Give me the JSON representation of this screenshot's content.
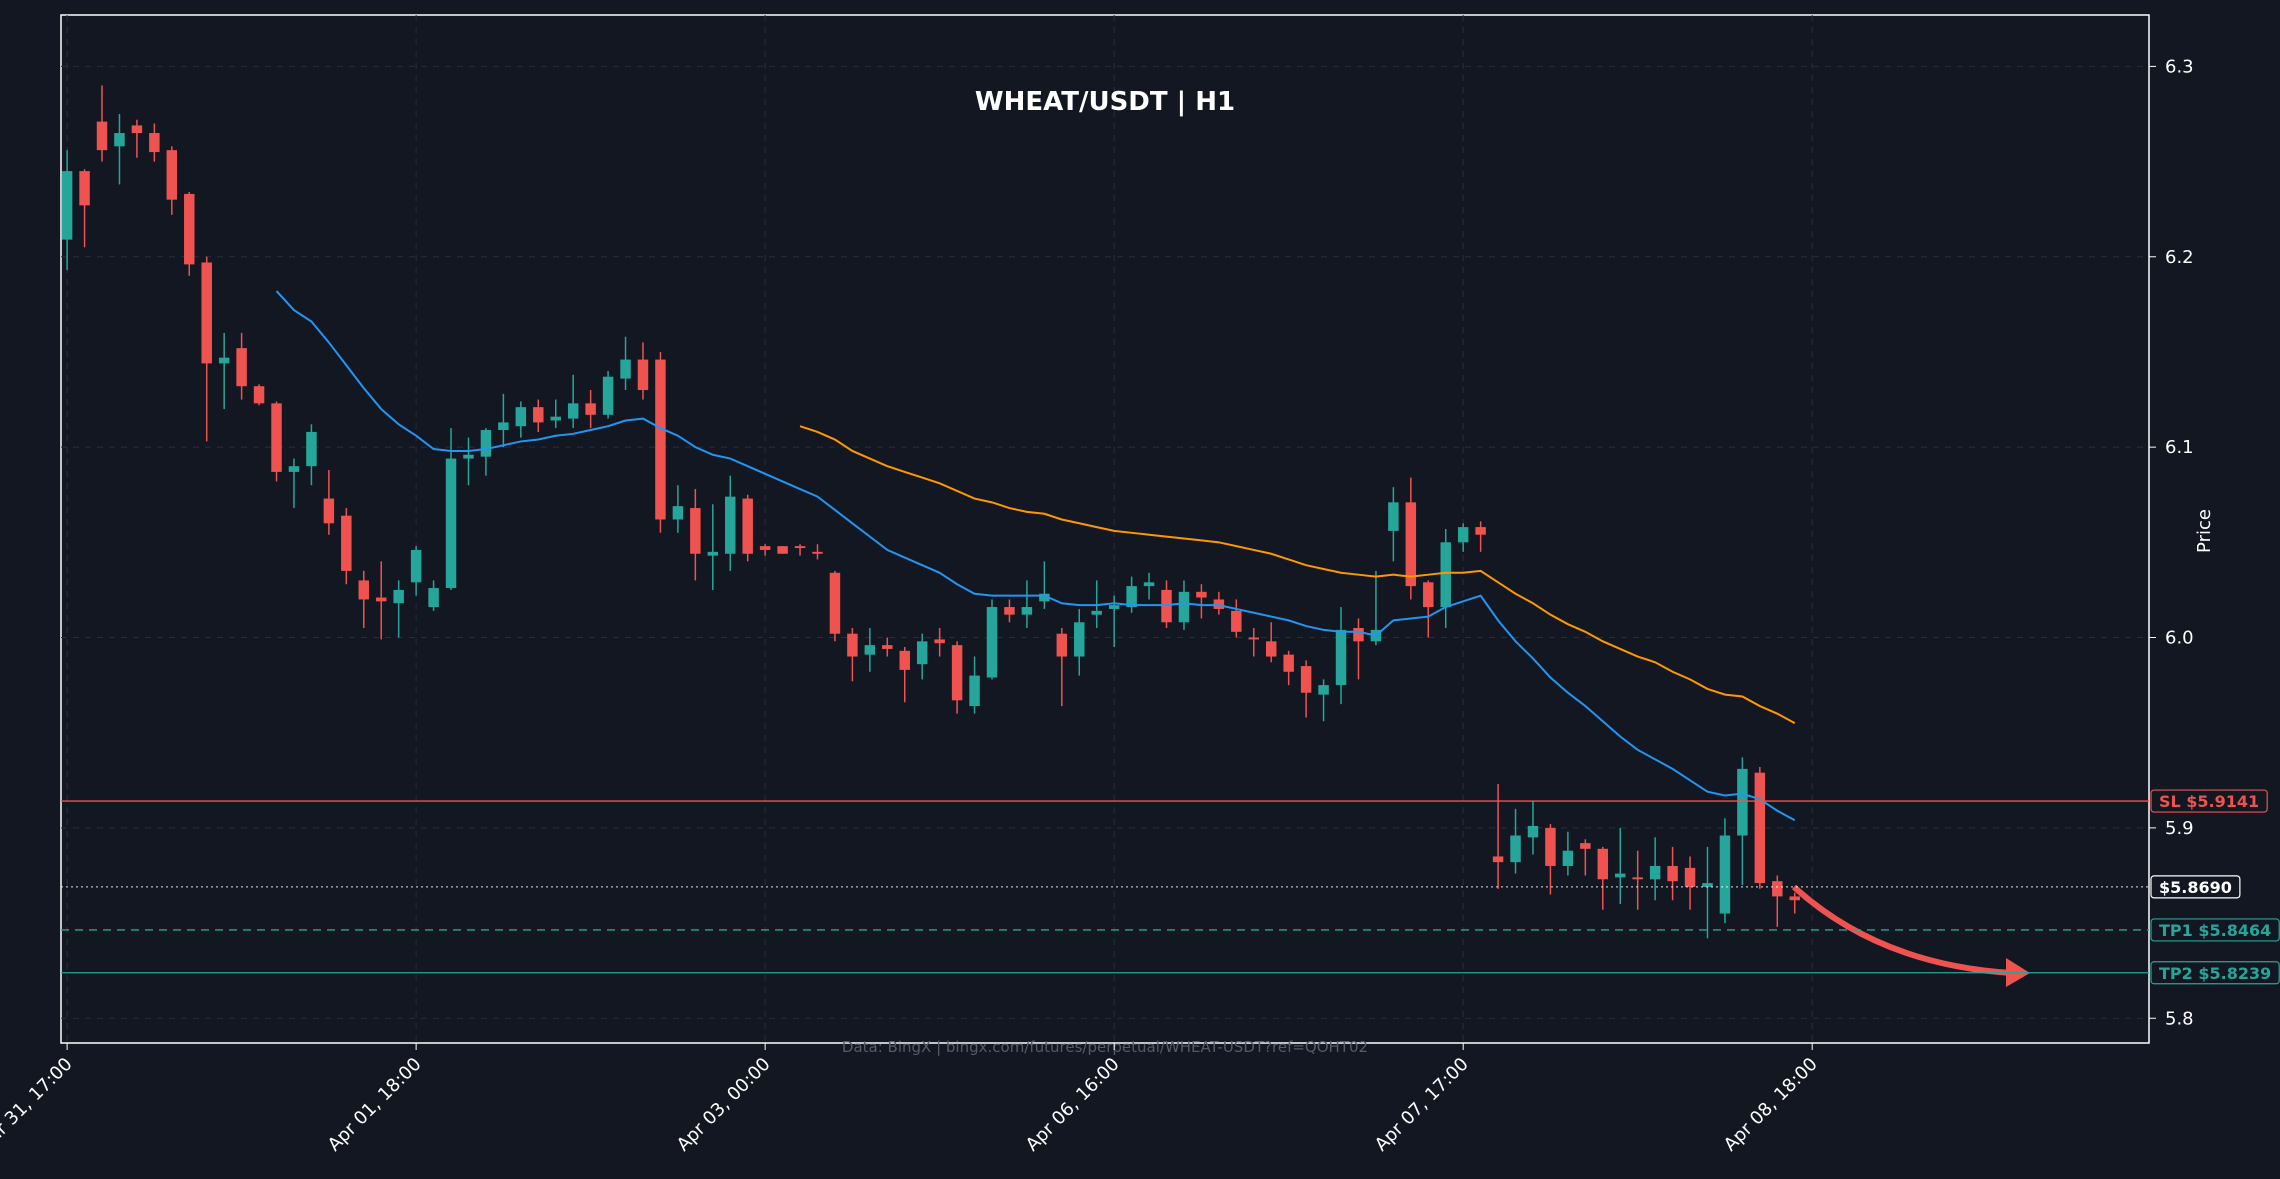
{
  "chart_data": {
    "type": "candlestick",
    "title": "WHEAT/USDT | H1",
    "y_label": "Price",
    "watermark": "Data: BingX | bingx.com/futures/perpetual/WHEAT-USDT?ref=QOHT02",
    "xlim": [
      -0.35,
      119.3
    ],
    "ylim": [
      5.787,
      6.327
    ],
    "xticks": [
      {
        "value": 0,
        "label": "Mar 31, 17:00"
      },
      {
        "value": 20,
        "label": "Apr 01, 18:00"
      },
      {
        "value": 40,
        "label": "Apr 03, 00:00"
      },
      {
        "value": 60,
        "label": "Apr 06, 16:00"
      },
      {
        "value": 80,
        "label": "Apr 07, 17:00"
      },
      {
        "value": 100,
        "label": "Apr 08, 18:00"
      }
    ],
    "yticks": [
      5.8,
      5.9,
      {
        "value": 6,
        "label": "6.0"
      },
      6.1,
      6.2,
      6.3
    ],
    "grid": true,
    "up_color": "#26a69a",
    "down_color": "#ef5350",
    "open": [
      6.209,
      6.245,
      6.271,
      6.258,
      6.269,
      6.265,
      6.256,
      6.233,
      6.197,
      6.144,
      6.152,
      6.132,
      6.123,
      6.087,
      6.09,
      6.073,
      6.064,
      6.03,
      6.021,
      6.018,
      6.029,
      6.016,
      6.026,
      6.094,
      6.095,
      6.109,
      6.111,
      6.121,
      6.114,
      6.115,
      6.123,
      6.117,
      6.136,
      6.146,
      6.146,
      6.062,
      6.068,
      6.043,
      6.044,
      6.073,
      6.048,
      6.048,
      6.048,
      6.045,
      6.034,
      6.002,
      5.991,
      5.996,
      5.993,
      5.986,
      5.999,
      5.996,
      5.964,
      5.979,
      6.016,
      6.012,
      6.019,
      6.002,
      5.99,
      6.012,
      6.015,
      6.016,
      6.027,
      6.025,
      6.008,
      6.024,
      6.02,
      6.014,
      6.0,
      5.998,
      5.991,
      5.985,
      5.97,
      5.975,
      6.005,
      5.998,
      6.056,
      6.071,
      6.029,
      6.016,
      6.05,
      6.058,
      5.885,
      5.882,
      5.895,
      5.9,
      5.88,
      5.892,
      5.889,
      5.874,
      5.874,
      5.873,
      5.88,
      5.879,
      5.869,
      5.855,
      5.896,
      5.929,
      5.872,
      5.864
    ],
    "high": [
      6.256,
      6.246,
      6.29,
      6.275,
      6.272,
      6.27,
      6.258,
      6.234,
      6.2,
      6.16,
      6.16,
      6.133,
      6.124,
      6.094,
      6.112,
      6.088,
      6.068,
      6.035,
      6.04,
      6.03,
      6.048,
      6.03,
      6.11,
      6.105,
      6.11,
      6.128,
      6.124,
      6.125,
      6.125,
      6.138,
      6.13,
      6.14,
      6.158,
      6.155,
      6.15,
      6.08,
      6.078,
      6.07,
      6.085,
      6.075,
      6.049,
      6.048,
      6.049,
      6.049,
      6.035,
      6.005,
      6.005,
      6.0,
      5.995,
      6.002,
      6.005,
      5.998,
      5.99,
      6.02,
      6.02,
      6.03,
      6.04,
      6.005,
      6.015,
      6.03,
      6.022,
      6.032,
      6.034,
      6.03,
      6.03,
      6.028,
      6.024,
      6.02,
      6.005,
      6.008,
      5.993,
      5.988,
      5.978,
      6.016,
      6.01,
      6.035,
      6.079,
      6.084,
      6.03,
      6.057,
      6.06,
      6.061,
      5.923,
      5.91,
      5.914,
      5.902,
      5.898,
      5.894,
      5.89,
      5.9,
      5.888,
      5.895,
      5.89,
      5.885,
      5.89,
      5.905,
      5.937,
      5.932,
      5.875,
      5.866
    ],
    "low": [
      6.193,
      6.205,
      6.25,
      6.238,
      6.252,
      6.25,
      6.222,
      6.19,
      6.103,
      6.12,
      6.125,
      6.122,
      6.082,
      6.068,
      6.08,
      6.054,
      6.028,
      6.005,
      5.999,
      6.0,
      6.022,
      6.014,
      6.025,
      6.08,
      6.085,
      6.1,
      6.105,
      6.108,
      6.11,
      6.11,
      6.11,
      6.115,
      6.13,
      6.125,
      6.055,
      6.055,
      6.03,
      6.025,
      6.035,
      6.04,
      6.043,
      6.044,
      6.043,
      6.041,
      5.998,
      5.977,
      5.982,
      5.99,
      5.966,
      5.978,
      5.99,
      5.96,
      5.96,
      5.978,
      6.008,
      6.005,
      6.015,
      5.964,
      5.98,
      6.005,
      5.995,
      6.013,
      6.02,
      6.005,
      6.004,
      6.01,
      6.012,
      6.0,
      5.99,
      5.987,
      5.975,
      5.958,
      5.956,
      5.965,
      5.978,
      5.996,
      6.04,
      6.02,
      6.0,
      6.005,
      6.045,
      6.045,
      5.868,
      5.876,
      5.886,
      5.865,
      5.875,
      5.875,
      5.857,
      5.86,
      5.857,
      5.862,
      5.862,
      5.857,
      5.842,
      5.85,
      5.87,
      5.868,
      5.848,
      5.855
    ],
    "close": [
      6.245,
      6.227,
      6.256,
      6.265,
      6.265,
      6.255,
      6.23,
      6.196,
      6.144,
      6.147,
      6.132,
      6.123,
      6.087,
      6.09,
      6.108,
      6.06,
      6.035,
      6.02,
      6.019,
      6.025,
      6.046,
      6.026,
      6.094,
      6.096,
      6.109,
      6.113,
      6.121,
      6.113,
      6.116,
      6.123,
      6.117,
      6.137,
      6.146,
      6.13,
      6.062,
      6.069,
      6.044,
      6.045,
      6.074,
      6.044,
      6.046,
      6.044,
      6.047,
      6.044,
      6.002,
      5.99,
      5.996,
      5.994,
      5.983,
      5.998,
      5.997,
      5.967,
      5.98,
      6.016,
      6.012,
      6.016,
      6.023,
      5.99,
      6.008,
      6.014,
      6.017,
      6.027,
      6.029,
      6.008,
      6.024,
      6.021,
      6.015,
      6.003,
      5.999,
      5.99,
      5.982,
      5.971,
      5.975,
      6.004,
      5.998,
      6.004,
      6.071,
      6.027,
      6.016,
      6.05,
      6.058,
      6.054,
      5.882,
      5.896,
      5.901,
      5.88,
      5.888,
      5.889,
      5.873,
      5.876,
      5.873,
      5.88,
      5.872,
      5.869,
      5.871,
      5.896,
      5.931,
      5.871,
      5.864,
      5.862
    ],
    "lines": [
      {
        "color": "#2196f3",
        "values": [
          null,
          null,
          null,
          null,
          null,
          null,
          null,
          null,
          null,
          null,
          null,
          null,
          6.182,
          6.172,
          6.166,
          6.155,
          6.143,
          6.131,
          6.12,
          6.112,
          6.106,
          6.099,
          6.098,
          6.098,
          6.099,
          6.101,
          6.103,
          6.104,
          6.106,
          6.107,
          6.109,
          6.111,
          6.114,
          6.115,
          6.11,
          6.106,
          6.1,
          6.096,
          6.094,
          6.09,
          6.086,
          6.082,
          6.078,
          6.074,
          6.067,
          6.06,
          6.053,
          6.046,
          6.042,
          6.038,
          6.034,
          6.028,
          6.023,
          6.022,
          6.022,
          6.022,
          6.022,
          6.018,
          6.017,
          6.017,
          6.018,
          6.017,
          6.017,
          6.017,
          6.018,
          6.017,
          6.017,
          6.015,
          6.013,
          6.011,
          6.009,
          6.006,
          6.004,
          6.003,
          6.003,
          6.001,
          6.009,
          6.01,
          6.011,
          6.016,
          6.019,
          6.022,
          6.009,
          5.998,
          5.989,
          5.979,
          5.971,
          5.964,
          5.956,
          5.948,
          5.941,
          5.936,
          5.931,
          5.925,
          5.919,
          5.917,
          5.918,
          5.915,
          5.909,
          5.904
        ]
      },
      {
        "color": "#ff9800",
        "values": [
          null,
          null,
          null,
          null,
          null,
          null,
          null,
          null,
          null,
          null,
          null,
          null,
          null,
          null,
          null,
          null,
          null,
          null,
          null,
          null,
          null,
          null,
          null,
          null,
          null,
          null,
          null,
          null,
          null,
          null,
          null,
          null,
          null,
          null,
          null,
          null,
          null,
          null,
          null,
          null,
          null,
          null,
          6.111,
          6.108,
          6.104,
          6.098,
          6.094,
          6.09,
          6.087,
          6.084,
          6.081,
          6.077,
          6.073,
          6.071,
          6.068,
          6.066,
          6.065,
          6.062,
          6.06,
          6.058,
          6.056,
          6.055,
          6.054,
          6.053,
          6.052,
          6.051,
          6.05,
          6.048,
          6.046,
          6.044,
          6.041,
          6.038,
          6.036,
          6.034,
          6.033,
          6.032,
          6.033,
          6.032,
          6.033,
          6.034,
          6.034,
          6.035,
          6.029,
          6.023,
          6.018,
          6.012,
          6.007,
          6.003,
          5.998,
          5.994,
          5.99,
          5.987,
          5.982,
          5.978,
          5.973,
          5.97,
          5.969,
          5.964,
          5.96,
          5.955
        ]
      }
    ],
    "levels": [
      {
        "label": "SL $5.9141",
        "value": 5.9141,
        "color": "#ef5350",
        "style": "solid"
      },
      {
        "label": "$5.8690",
        "value": 5.869,
        "color": "#ffffff",
        "style": "dotted"
      },
      {
        "label": "TP1 $5.8464",
        "value": 5.8464,
        "color": "#26a69a",
        "style": "dashed"
      },
      {
        "label": "TP2 $5.8239",
        "value": 5.8239,
        "color": "#26a69a",
        "style": "solid"
      }
    ]
  }
}
